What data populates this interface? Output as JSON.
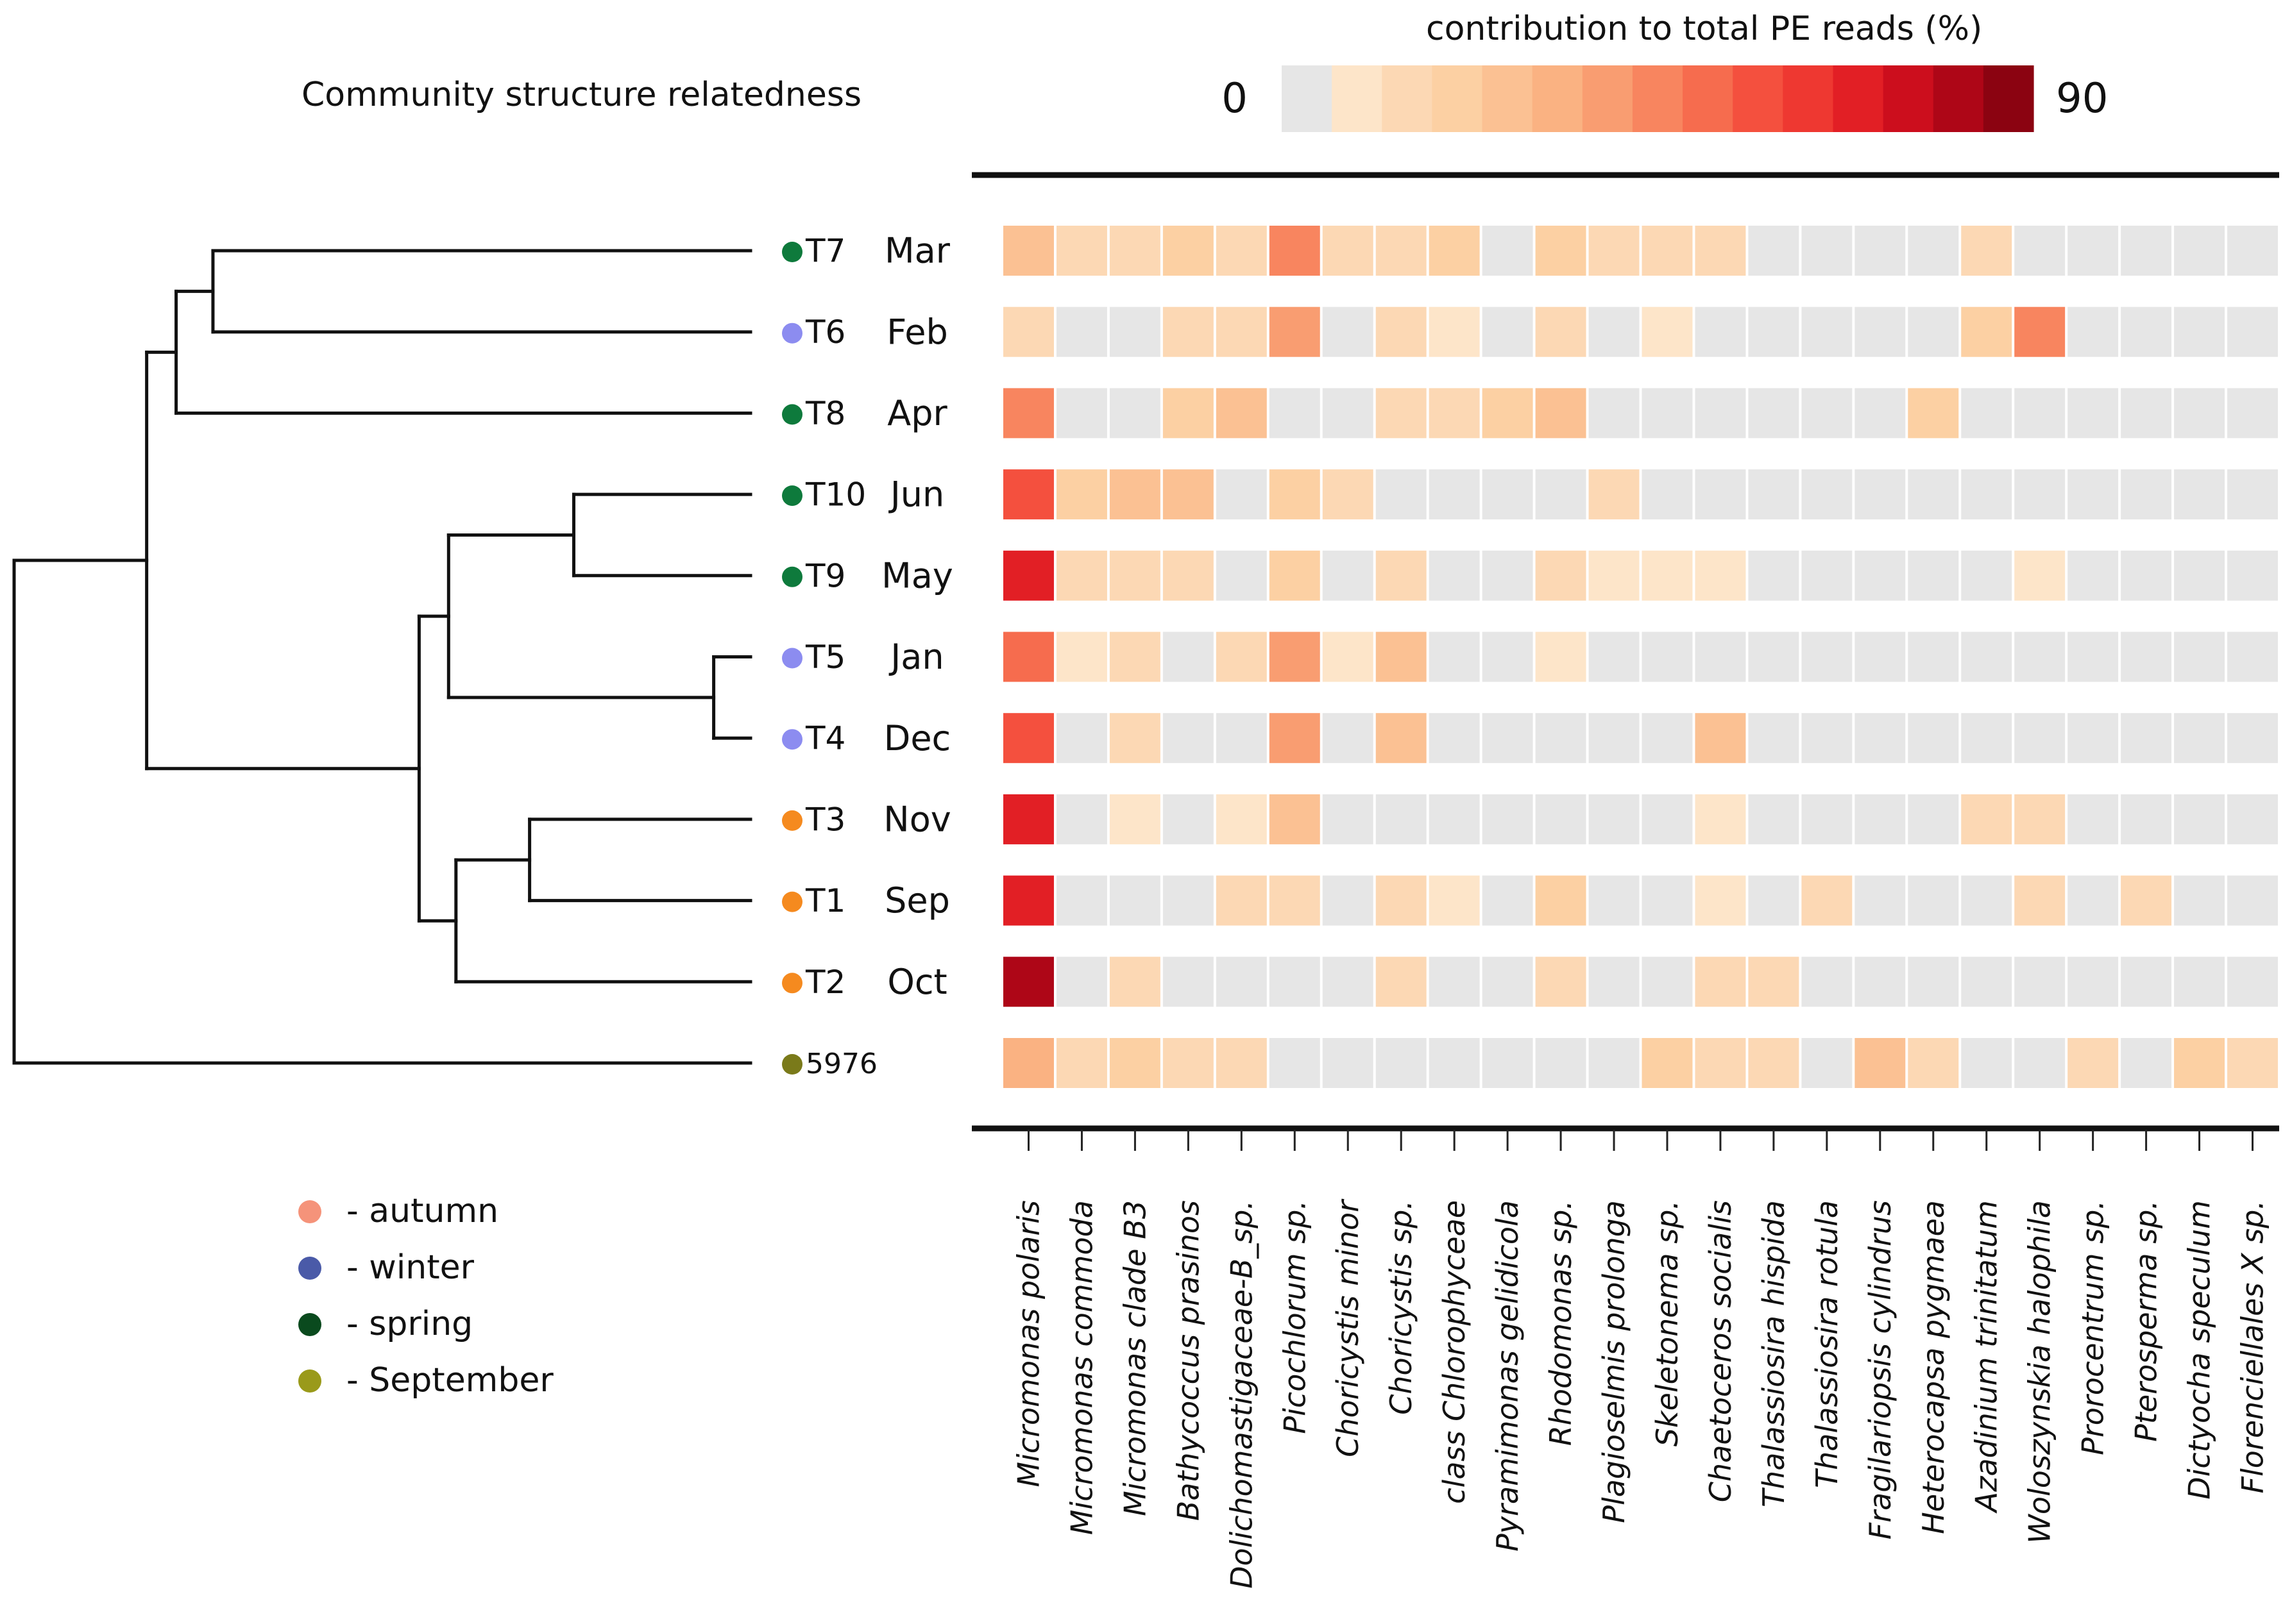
{
  "chart_data": {
    "type": "heatmap",
    "dendrogram_title": "Community structure relatedness",
    "colorbar": {
      "title": "contribution to total PE reads (%)",
      "min_label": "0",
      "max_label": "90",
      "min": 0,
      "max": 90,
      "colors": [
        "#e6e6e6",
        "#fde5c9",
        "#fcd8b4",
        "#fcd0a3",
        "#fbc193",
        "#fab282",
        "#f99d71",
        "#f8855f",
        "#f66c4e",
        "#f4503e",
        "#ee3831",
        "#e21f25",
        "#cc0e1d",
        "#ae0617",
        "#8b0311"
      ]
    },
    "rows": [
      {
        "id": "T7",
        "month": "Mar",
        "season": "spring"
      },
      {
        "id": "T6",
        "month": "Feb",
        "season": "winter"
      },
      {
        "id": "T8",
        "month": "Apr",
        "season": "spring"
      },
      {
        "id": "T10",
        "month": "Jun",
        "season": "spring"
      },
      {
        "id": "T9",
        "month": "May",
        "season": "spring"
      },
      {
        "id": "T5",
        "month": "Jan",
        "season": "winter"
      },
      {
        "id": "T4",
        "month": "Dec",
        "season": "winter"
      },
      {
        "id": "T3",
        "month": "Nov",
        "season": "autumn"
      },
      {
        "id": "T1",
        "month": "Sep",
        "season": "autumn"
      },
      {
        "id": "T2",
        "month": "Oct",
        "season": "autumn"
      },
      {
        "id": "5976",
        "month": "",
        "season": "September"
      }
    ],
    "columns": [
      "Micromonas polaris",
      "Micromonas commoda",
      "Micromonas clade B3",
      "Bathycoccus prasinos",
      "Dolichomastigaceae-B_sp.",
      "Picochlorum sp.",
      "Choricystis minor",
      "Choricystis sp.",
      "class Chlorophyceae",
      "Pyramimonas gelidicola",
      "Rhodomonas sp.",
      "Plagioselmis prolonga",
      "Skeletonema sp.",
      "Chaetoceros socialis",
      "Thalassiosira hispida",
      "Thalassiosira rotula",
      "Fragilariopsis cylindrus",
      "Heterocapsa pygmaea",
      "Azadinium trinitatum",
      "Woloszynskia halophila",
      "Prorocentrum sp.",
      "Pterosperma sp.",
      "Dictyocha speculum",
      "Florenciellales X sp."
    ],
    "values": [
      [
        24,
        12,
        12,
        18,
        12,
        42,
        12,
        12,
        18,
        0,
        18,
        12,
        12,
        12,
        0,
        0,
        0,
        0,
        12,
        0,
        0,
        0,
        0,
        0
      ],
      [
        12,
        0,
        0,
        12,
        12,
        36,
        0,
        12,
        6,
        0,
        12,
        0,
        6,
        0,
        0,
        0,
        0,
        0,
        18,
        42,
        0,
        0,
        0,
        0
      ],
      [
        42,
        0,
        0,
        18,
        24,
        0,
        0,
        12,
        12,
        18,
        24,
        0,
        0,
        0,
        0,
        0,
        0,
        18,
        0,
        0,
        0,
        0,
        0,
        0
      ],
      [
        54,
        18,
        24,
        24,
        0,
        18,
        12,
        0,
        0,
        0,
        0,
        12,
        0,
        0,
        0,
        0,
        0,
        0,
        0,
        0,
        0,
        0,
        0,
        0
      ],
      [
        66,
        12,
        12,
        12,
        0,
        18,
        0,
        12,
        0,
        0,
        12,
        6,
        6,
        6,
        0,
        0,
        0,
        0,
        0,
        6,
        0,
        0,
        0,
        0
      ],
      [
        48,
        6,
        12,
        0,
        12,
        36,
        6,
        24,
        0,
        0,
        6,
        0,
        0,
        0,
        0,
        0,
        0,
        0,
        0,
        0,
        0,
        0,
        0,
        0
      ],
      [
        54,
        0,
        12,
        0,
        0,
        36,
        0,
        24,
        0,
        0,
        0,
        0,
        0,
        24,
        0,
        0,
        0,
        0,
        0,
        0,
        0,
        0,
        0,
        0
      ],
      [
        66,
        0,
        6,
        0,
        6,
        24,
        0,
        0,
        0,
        0,
        0,
        0,
        0,
        6,
        0,
        0,
        0,
        0,
        12,
        12,
        0,
        0,
        0,
        0
      ],
      [
        66,
        0,
        0,
        0,
        12,
        12,
        0,
        12,
        6,
        0,
        18,
        0,
        0,
        6,
        0,
        12,
        0,
        0,
        0,
        12,
        0,
        12,
        0,
        0
      ],
      [
        78,
        0,
        12,
        0,
        0,
        0,
        0,
        12,
        0,
        0,
        12,
        0,
        0,
        12,
        12,
        0,
        0,
        0,
        0,
        0,
        0,
        0,
        0,
        0
      ],
      [
        30,
        12,
        18,
        12,
        12,
        0,
        0,
        0,
        0,
        0,
        0,
        0,
        18,
        12,
        12,
        0,
        24,
        12,
        0,
        0,
        12,
        0,
        18,
        12
      ]
    ],
    "dendrogram": {
      "leaves": [
        "T7",
        "T6",
        "T8",
        "T10",
        "T9",
        "T5",
        "T4",
        "T3",
        "T1",
        "T2",
        "5976"
      ],
      "merges": [
        {
          "left": "T7",
          "right": "T6",
          "height": 0.73
        },
        {
          "left": "T7+T6",
          "right": "T8",
          "height": 0.78
        },
        {
          "left": "T10",
          "right": "T9",
          "height": 0.24
        },
        {
          "left": "T5",
          "right": "T4",
          "height": 0.05
        },
        {
          "left": "T10+T9",
          "right": "T5+T4",
          "height": 0.41
        },
        {
          "left": "T3",
          "right": "T1",
          "height": 0.3
        },
        {
          "left": "T3+T1",
          "right": "T2",
          "height": 0.4
        },
        {
          "left": "T10+T9+T5+T4",
          "right": "T3+T1+T2",
          "height": 0.45
        },
        {
          "left": "T7+T6+T8",
          "right": "T10+T9+T5+T4+T3+T1+T2",
          "height": 0.82
        },
        {
          "left": "all",
          "right": "5976",
          "height": 1.0
        }
      ]
    },
    "legend": [
      {
        "label": "- autumn",
        "season": "autumn",
        "color": "#f5937a"
      },
      {
        "label": "- winter",
        "season": "winter",
        "color": "#4a5aa8"
      },
      {
        "label": "- spring",
        "season": "spring",
        "color": "#0a4a1e"
      },
      {
        "label": "- September",
        "season": "September",
        "color": "#9a9a1a"
      }
    ],
    "season_dot_colors": {
      "spring": "#0e7a3c",
      "winter": "#8c8cf0",
      "autumn": "#f58a1f",
      "September": "#7a7a1a"
    }
  }
}
